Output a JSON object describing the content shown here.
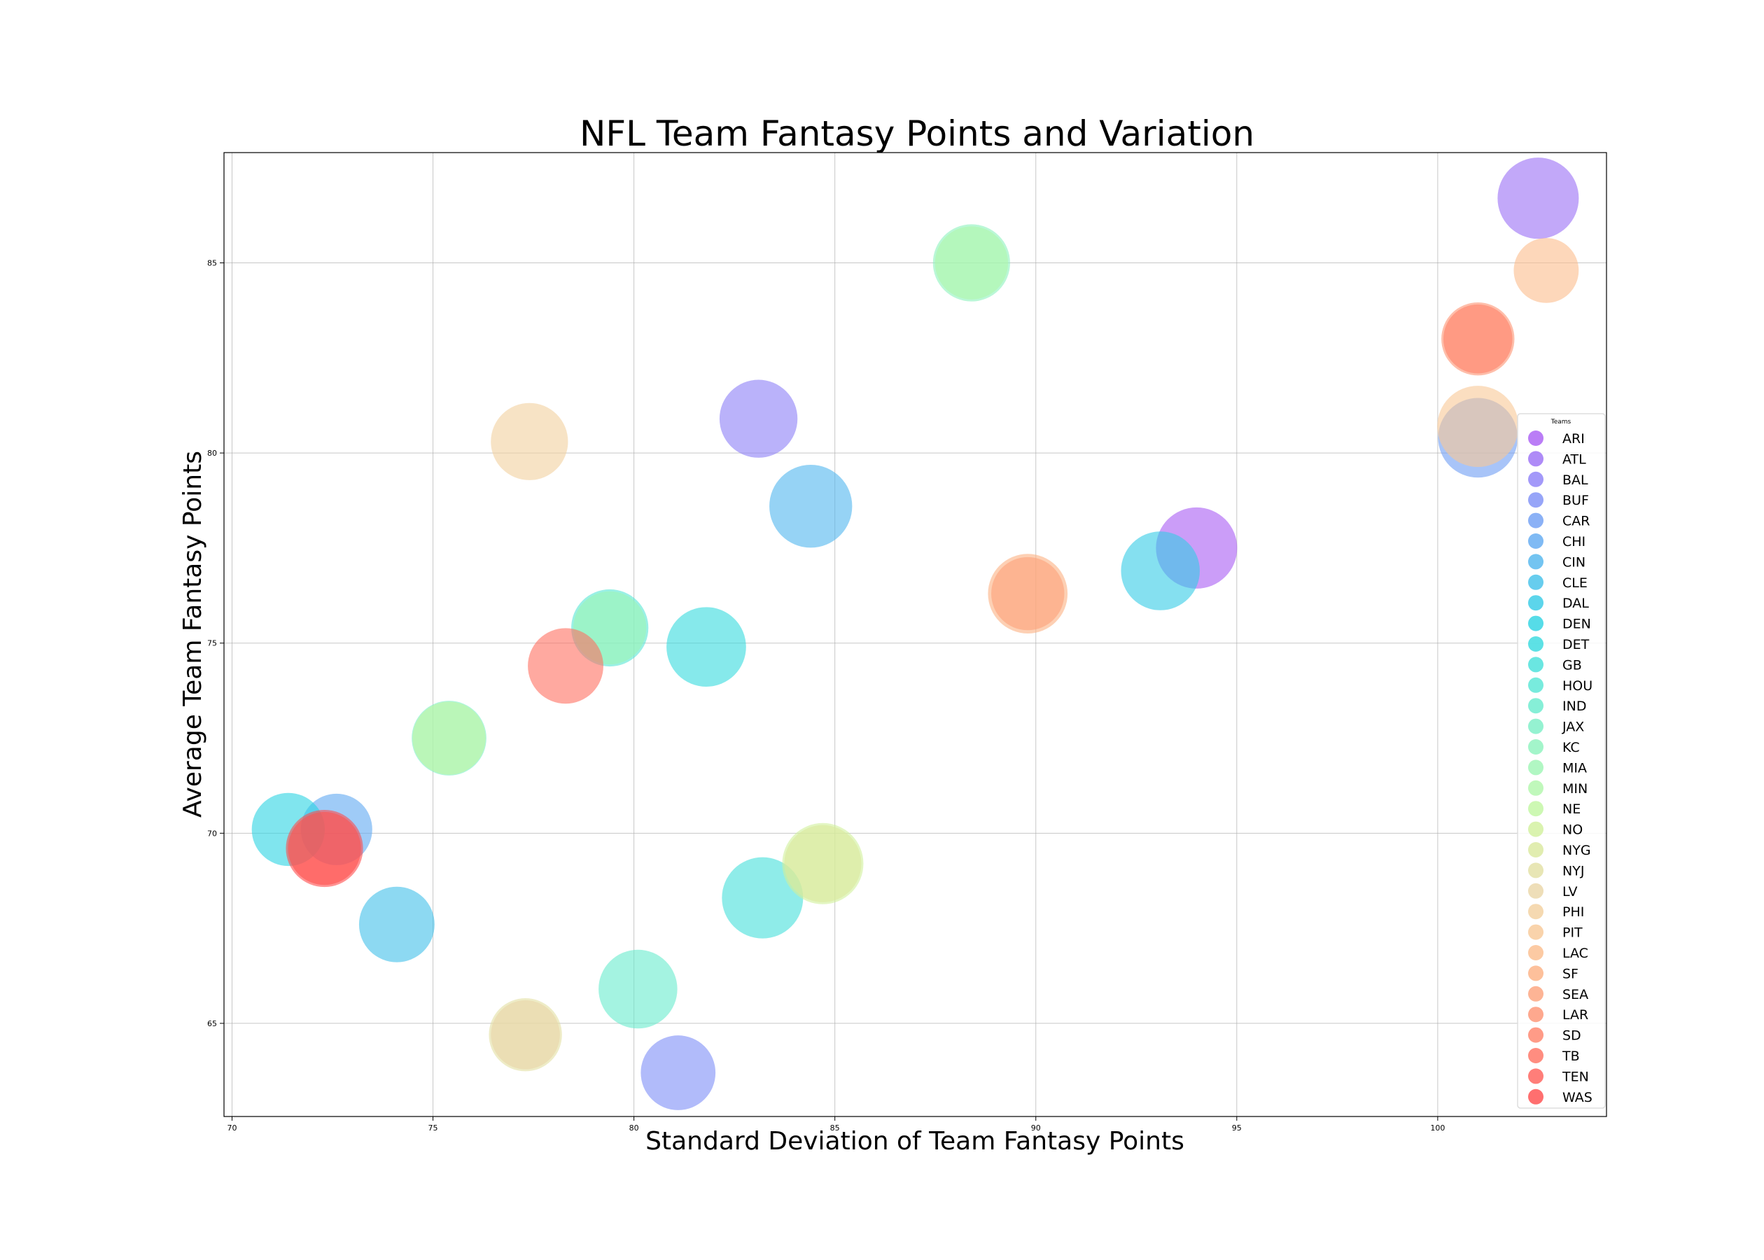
{
  "chart_data": {
    "type": "scatter",
    "title": "NFL Team Fantasy Points and Variation",
    "xlabel": "Standard Deviation of Team Fantasy Points",
    "ylabel": "Average Team Fantasy Points",
    "xlim": [
      69.8,
      104.2
    ],
    "ylim": [
      62.55,
      87.9
    ],
    "xticks": [
      70,
      75,
      80,
      85,
      90,
      95,
      100
    ],
    "yticks": [
      65,
      70,
      75,
      80,
      85
    ],
    "grid": true,
    "legend": {
      "title": "Teams",
      "placement": "right"
    },
    "points": [
      {
        "team": "ARI",
        "x": 94.0,
        "y": 77.5,
        "size": 1.0,
        "color": "#a95cf4"
      },
      {
        "team": "ATL",
        "x": 102.5,
        "y": 86.7,
        "size": 1.0,
        "color": "#9a6ef5"
      },
      {
        "team": "BAL",
        "x": 83.1,
        "y": 80.9,
        "size": 0.96,
        "color": "#8c7ff7"
      },
      {
        "team": "BUF",
        "x": 81.1,
        "y": 63.7,
        "size": 0.92,
        "color": "#7d8ef6"
      },
      {
        "team": "CAR",
        "x": 101.0,
        "y": 80.4,
        "size": 0.98,
        "color": "#6e9df4"
      },
      {
        "team": "CHI",
        "x": 72.6,
        "y": 70.1,
        "size": 0.88,
        "color": "#5fa9f1"
      },
      {
        "team": "CIN",
        "x": 84.4,
        "y": 78.6,
        "size": 1.02,
        "color": "#50b5ee"
      },
      {
        "team": "CLE",
        "x": 74.1,
        "y": 67.6,
        "size": 0.93,
        "color": "#41c0ea"
      },
      {
        "team": "DAL",
        "x": 93.1,
        "y": 76.9,
        "size": 0.97,
        "color": "#33cbe6"
      },
      {
        "team": "DEN",
        "x": 71.4,
        "y": 70.1,
        "size": 0.9,
        "color": "#2cd3e2"
      },
      {
        "team": "DET",
        "x": 81.8,
        "y": 74.9,
        "size": 0.98,
        "color": "#35dade"
      },
      {
        "team": "GB",
        "x": 83.2,
        "y": 68.3,
        "size": 1.0,
        "color": "#45e0da"
      },
      {
        "team": "HOU",
        "x": 79.4,
        "y": 75.4,
        "size": 0.95,
        "color": "#56e6d4"
      },
      {
        "team": "IND",
        "x": 80.1,
        "y": 65.9,
        "size": 0.97,
        "color": "#68ebcd"
      },
      {
        "team": "JAX",
        "x": 75.4,
        "y": 72.5,
        "size": 0.92,
        "color": "#7aefc6"
      },
      {
        "team": "KC",
        "x": 88.4,
        "y": 85.0,
        "size": 0.95,
        "color": "#8cf2bd"
      },
      {
        "team": "MIA",
        "x": 79.4,
        "y": 75.4,
        "size": 0.9,
        "color": "#9ef5b4"
      },
      {
        "team": "MIN",
        "x": 88.4,
        "y": 85.0,
        "size": 0.9,
        "color": "#b0f6aa"
      },
      {
        "team": "NE",
        "x": 75.4,
        "y": 72.5,
        "size": 0.9,
        "color": "#c1f6a0"
      },
      {
        "team": "NO",
        "x": 84.7,
        "y": 69.2,
        "size": 1.0,
        "color": "#d1f09b"
      },
      {
        "team": "NYG",
        "x": 84.7,
        "y": 69.2,
        "size": 0.95,
        "color": "#dae99c"
      },
      {
        "team": "NYJ",
        "x": 77.3,
        "y": 64.7,
        "size": 0.9,
        "color": "#e2e0a2"
      },
      {
        "team": "LV",
        "x": 77.3,
        "y": 64.7,
        "size": 0.85,
        "color": "#ead6a6"
      },
      {
        "team": "PHI",
        "x": 77.4,
        "y": 80.3,
        "size": 0.95,
        "color": "#f2d09e"
      },
      {
        "team": "PIT",
        "x": 101.0,
        "y": 80.7,
        "size": 1.0,
        "color": "#f8c896"
      },
      {
        "team": "LAC",
        "x": 102.7,
        "y": 84.8,
        "size": 0.8,
        "color": "#fbbd8c"
      },
      {
        "team": "SF",
        "x": 89.8,
        "y": 76.3,
        "size": 0.98,
        "color": "#fcb082"
      },
      {
        "team": "SEA",
        "x": 89.8,
        "y": 76.3,
        "size": 0.9,
        "color": "#fda17a"
      },
      {
        "team": "LAR",
        "x": 101.0,
        "y": 83.0,
        "size": 0.9,
        "color": "#fe9272"
      },
      {
        "team": "SD",
        "x": 101.0,
        "y": 83.0,
        "size": 0.85,
        "color": "#ff8269"
      },
      {
        "team": "TB",
        "x": 78.3,
        "y": 74.4,
        "size": 0.93,
        "color": "#ff7060"
      },
      {
        "team": "TEN",
        "x": 72.3,
        "y": 69.6,
        "size": 0.9,
        "color": "#ff5e57"
      },
      {
        "team": "WAS",
        "x": 72.3,
        "y": 69.6,
        "size": 0.95,
        "color": "#ff4b4b"
      }
    ]
  }
}
